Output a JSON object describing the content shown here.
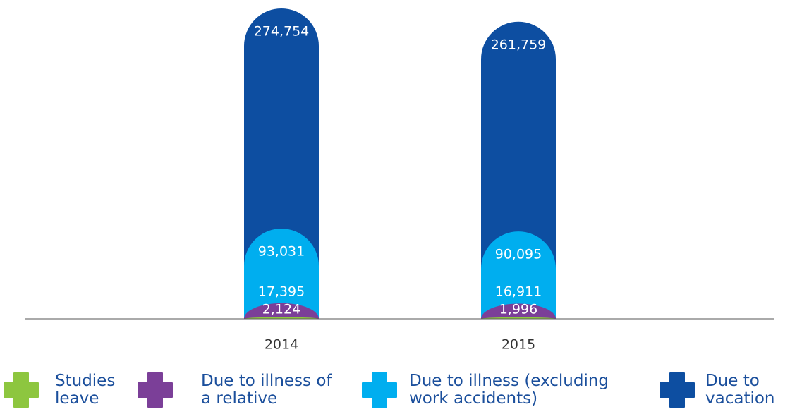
{
  "chart_data": {
    "type": "stacked_bar",
    "categories": [
      "2014",
      "2015"
    ],
    "series": [
      {
        "name": "Studies leave",
        "color": "#8dc63f",
        "values": [
          2124,
          1996
        ],
        "value_labels": [
          "2,124",
          "1,996"
        ]
      },
      {
        "name": "Due to illness of a relative",
        "color": "#7b3f98",
        "values": [
          17395,
          16911
        ],
        "value_labels": [
          "17,395",
          "16,911"
        ]
      },
      {
        "name": "Due to illness (excluding work accidents)",
        "color": "#00aeef",
        "values": [
          93031,
          90095
        ],
        "value_labels": [
          "93,031",
          "90,095"
        ]
      },
      {
        "name": "Due to vacation",
        "color": "#0d4ea1",
        "values": [
          274754,
          261759
        ],
        "value_labels": [
          "274,754",
          "261,759"
        ]
      }
    ],
    "ylim": [
      0,
      387304
    ]
  }
}
